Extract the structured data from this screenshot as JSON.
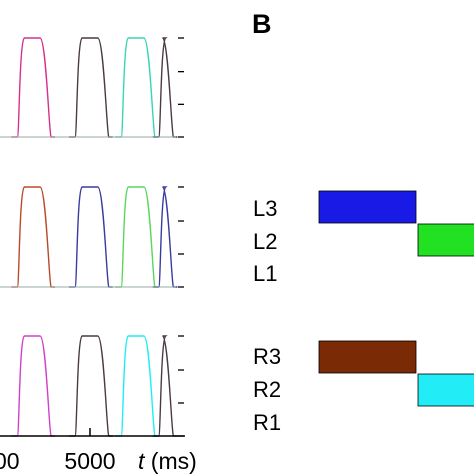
{
  "panel_b_label": "B",
  "x_axis": {
    "tick_labels": [
      "00",
      "5000"
    ],
    "unit_var": "t",
    "unit_suffix": " (ms)"
  },
  "legend_groups": [
    {
      "labels": [
        "L3",
        "L2",
        "L1"
      ]
    },
    {
      "labels": [
        "R3",
        "R2",
        "R1"
      ]
    }
  ],
  "colors": {
    "magenta": "#d6308a",
    "dark": "#4a3a45",
    "teal": "#38d6b4",
    "blue": "#1a1ae6",
    "green": "#22e022",
    "brown": "#7a2a05",
    "cyan": "#22ecf5",
    "rust": "#b84a2a",
    "navy": "#3a3aa0",
    "lime": "#5ad65a",
    "pink": "#d040c8"
  },
  "chart_data": [
    {
      "type": "line",
      "title": "",
      "xlabel": "t (ms)",
      "ylabel": "",
      "xlim": [
        2850,
        5900
      ],
      "ylim": [
        0,
        1
      ],
      "pulses": [
        {
          "start": 3150,
          "end": 3700,
          "color": "magenta"
        },
        {
          "start": 4150,
          "end": 4700,
          "color": "dark"
        },
        {
          "start": 4950,
          "end": 5500,
          "color": "teal"
        },
        {
          "start": 5600,
          "end": 5820,
          "color": "dark"
        }
      ]
    },
    {
      "type": "line",
      "title": "",
      "xlabel": "t (ms)",
      "ylabel": "",
      "xlim": [
        2850,
        5900
      ],
      "ylim": [
        0,
        1
      ],
      "pulses": [
        {
          "start": 3150,
          "end": 3700,
          "color": "rust"
        },
        {
          "start": 4150,
          "end": 4700,
          "color": "navy"
        },
        {
          "start": 4950,
          "end": 5500,
          "color": "lime"
        },
        {
          "start": 5600,
          "end": 5820,
          "color": "navy"
        }
      ]
    },
    {
      "type": "line",
      "title": "",
      "xlabel": "t (ms)",
      "ylabel": "",
      "xlim": [
        2850,
        5900
      ],
      "ylim": [
        0,
        1
      ],
      "pulses": [
        {
          "start": 3150,
          "end": 3700,
          "color": "pink"
        },
        {
          "start": 4150,
          "end": 4700,
          "color": "dark"
        },
        {
          "start": 4950,
          "end": 5500,
          "color": "cyan"
        },
        {
          "start": 5600,
          "end": 5820,
          "color": "dark"
        }
      ]
    }
  ],
  "schedule": {
    "type": "timeline",
    "bars": [
      {
        "row": "L3",
        "slot": 1,
        "color": "blue"
      },
      {
        "row": "L2",
        "slot": 2,
        "color": "green"
      },
      {
        "row": "R3",
        "slot": 1,
        "color": "brown"
      },
      {
        "row": "R2",
        "slot": 2,
        "color": "cyan"
      }
    ]
  }
}
